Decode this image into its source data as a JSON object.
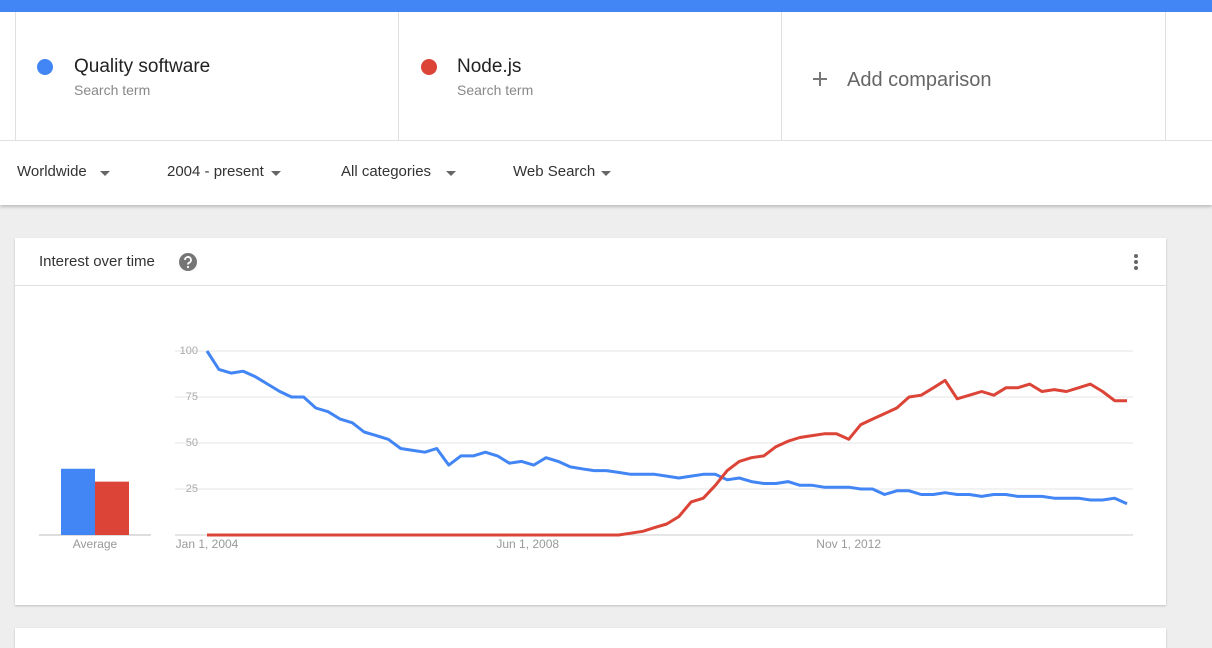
{
  "comparison": {
    "terms": [
      {
        "label": "Search term"
      },
      {
        "label": "Search term"
      }
    ],
    "add": "Add comparison"
  },
  "filters": [
    "Worldwide",
    "2004 - present",
    "All categories",
    "Web Search"
  ],
  "card": {
    "title": "Interest over time"
  },
  "chart_data": [
    {
      "type": "bar",
      "label": "Average",
      "values": [
        36,
        29
      ],
      "colors": [
        "#4285f4",
        "#db4437"
      ],
      "ylim": [
        0,
        100
      ]
    },
    {
      "type": "line",
      "x": [
        "2004-01-01",
        "2004-03-01",
        "2004-05-01",
        "2004-07-01",
        "2004-09-01",
        "2004-11-01",
        "2005-01-01",
        "2005-03-01",
        "2005-05-01",
        "2005-07-01",
        "2005-09-01",
        "2005-11-01",
        "2006-01-01",
        "2006-03-01",
        "2006-05-01",
        "2006-07-01",
        "2006-09-01",
        "2006-11-01",
        "2007-01-01",
        "2007-03-01",
        "2007-05-01",
        "2007-07-01",
        "2007-09-01",
        "2007-11-01",
        "2008-01-01",
        "2008-03-01",
        "2008-05-01",
        "2008-07-01",
        "2008-09-01",
        "2008-11-01",
        "2009-01-01",
        "2009-03-01",
        "2009-05-01",
        "2009-07-01",
        "2009-09-01",
        "2009-11-01",
        "2010-01-01",
        "2010-03-01",
        "2010-05-01",
        "2010-07-01",
        "2010-09-01",
        "2010-11-01",
        "2011-01-01",
        "2011-03-01",
        "2011-05-01",
        "2011-07-01",
        "2011-09-01",
        "2011-11-01",
        "2012-01-01",
        "2012-03-01",
        "2012-05-01",
        "2012-07-01",
        "2012-09-01",
        "2012-11-01",
        "2013-01-01",
        "2013-03-01",
        "2013-05-01",
        "2013-07-01",
        "2013-09-01",
        "2013-11-01",
        "2014-01-01",
        "2014-03-01",
        "2014-05-01",
        "2014-07-01",
        "2014-09-01",
        "2014-11-01",
        "2015-01-01",
        "2015-03-01",
        "2015-05-01",
        "2015-07-01",
        "2015-09-01",
        "2015-11-01",
        "2016-01-01",
        "2016-03-01",
        "2016-05-01",
        "2016-07-01",
        "2016-09-01"
      ],
      "series": [
        {
          "name": "Quality software",
          "color": "#4285f4",
          "values": [
            100,
            90,
            88,
            89,
            86,
            82,
            78,
            75,
            75,
            69,
            67,
            63,
            61,
            56,
            54,
            52,
            47,
            46,
            45,
            47,
            38,
            43,
            43,
            45,
            43,
            39,
            40,
            38,
            42,
            40,
            37,
            36,
            35,
            35,
            34,
            33,
            33,
            33,
            32,
            31,
            32,
            33,
            33,
            30,
            31,
            29,
            28,
            28,
            29,
            27,
            27,
            26,
            26,
            26,
            25,
            25,
            22,
            24,
            24,
            22,
            22,
            23,
            22,
            22,
            21,
            22,
            22,
            21,
            21,
            21,
            20,
            20,
            20,
            19,
            19,
            20,
            17
          ]
        },
        {
          "name": "Node.js",
          "color": "#db4437",
          "values": [
            0,
            0,
            0,
            0,
            0,
            0,
            0,
            0,
            0,
            0,
            0,
            0,
            0,
            0,
            0,
            0,
            0,
            0,
            0,
            0,
            0,
            0,
            0,
            0,
            0,
            0,
            0,
            0,
            0,
            0,
            0,
            0,
            0,
            0,
            0,
            1,
            2,
            4,
            6,
            10,
            18,
            20,
            27,
            35,
            40,
            42,
            43,
            48,
            51,
            53,
            54,
            55,
            55,
            52,
            60,
            63,
            66,
            69,
            75,
            76,
            80,
            84,
            74,
            76,
            78,
            76,
            80,
            80,
            82,
            78,
            79,
            78,
            80,
            82,
            78,
            73,
            73
          ]
        }
      ],
      "xlim": [
        "2004-01-01",
        "2016-10-01"
      ],
      "xticks": [
        {
          "value": "2004-01-01",
          "label": "Jan 1, 2004"
        },
        {
          "value": "2008-06-01",
          "label": "Jun 1, 2008"
        },
        {
          "value": "2012-11-01",
          "label": "Nov 1, 2012"
        }
      ],
      "ylim": [
        0,
        100
      ],
      "yticks": [
        25,
        50,
        75,
        100
      ],
      "grid": true
    }
  ]
}
